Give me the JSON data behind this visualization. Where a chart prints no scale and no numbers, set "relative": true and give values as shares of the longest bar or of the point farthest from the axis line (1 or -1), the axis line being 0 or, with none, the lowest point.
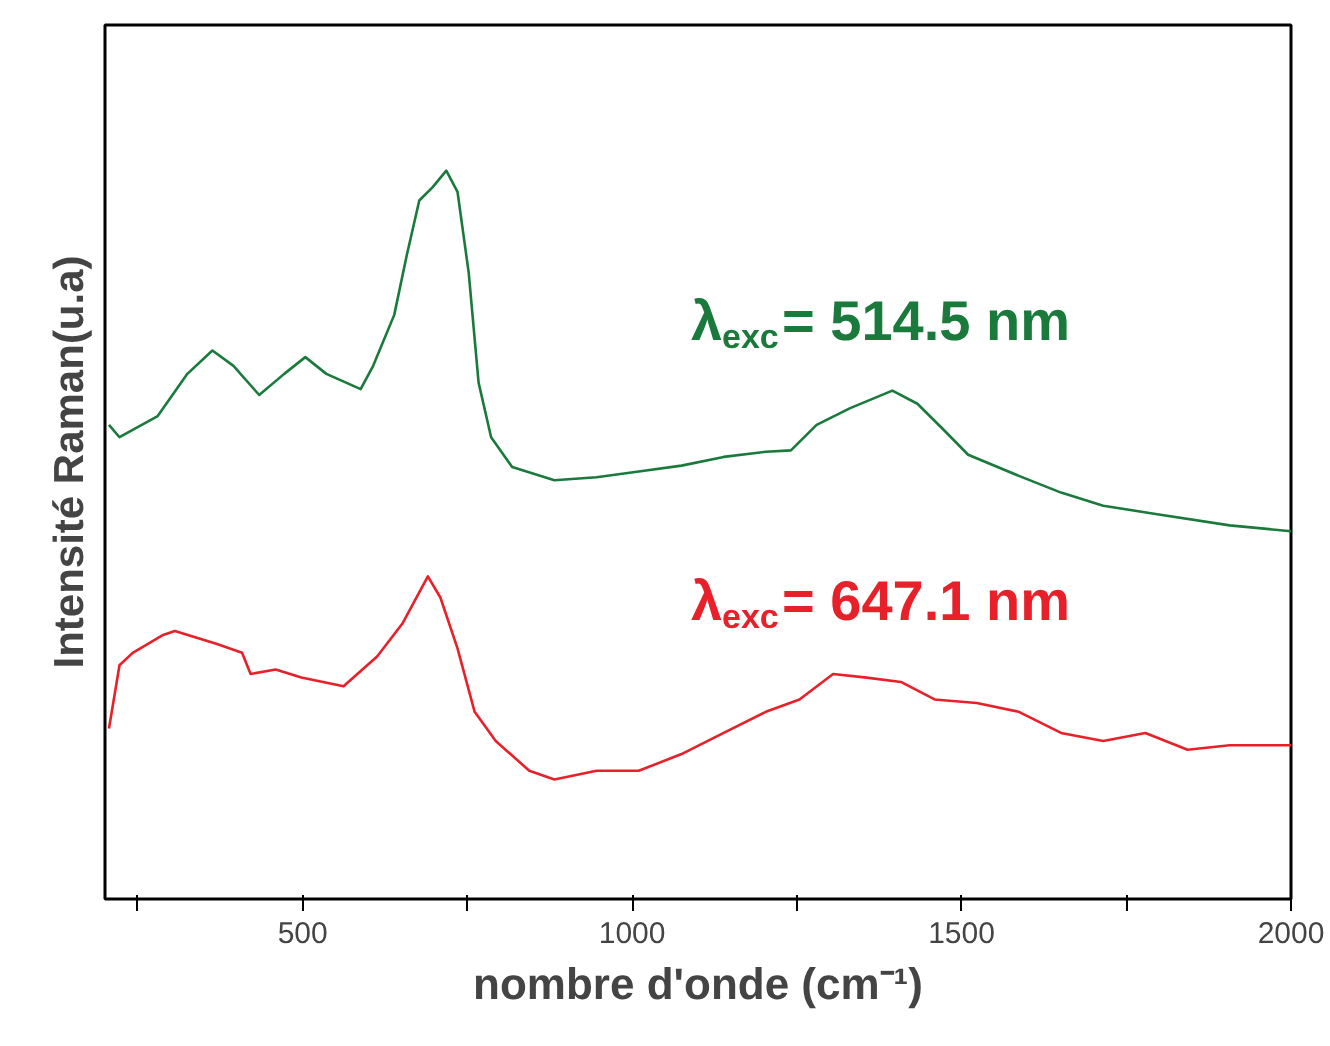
{
  "chart_data": {
    "type": "line",
    "relative": true,
    "xlabel": "nombre d'onde (cm⁻¹)",
    "ylabel": "Intensité Raman(u.a)",
    "xlim": [
      200,
      2000
    ],
    "xticks": [
      {
        "value": 250,
        "label": null
      },
      500,
      {
        "value": 750,
        "label": null
      },
      1000,
      {
        "value": 1250,
        "label": null
      },
      1500,
      {
        "value": 1750,
        "label": null
      },
      2000
    ],
    "grid": false,
    "marker": "none",
    "line_style": "solid",
    "series": [
      {
        "name": "λ$_{exc}$= 514.5 nm",
        "color": "#1a7a3c",
        "x": [
          206,
          222,
          280,
          325,
          363,
          395,
          434,
          472,
          504,
          536,
          588,
          607,
          639,
          658,
          677,
          697,
          718,
          735,
          752,
          767,
          786,
          818,
          882,
          946,
          1010,
          1075,
          1139,
          1203,
          1241,
          1280,
          1331,
          1395,
          1433,
          1472,
          1510,
          1587,
          1651,
          1715,
          1792,
          1907,
          2000
        ],
        "values": [
          0.651,
          0.634,
          0.663,
          0.721,
          0.753,
          0.732,
          0.692,
          0.721,
          0.744,
          0.721,
          0.7,
          0.732,
          0.802,
          0.884,
          0.959,
          0.977,
          1.0,
          0.971,
          0.86,
          0.709,
          0.634,
          0.593,
          0.575,
          0.579,
          0.587,
          0.595,
          0.607,
          0.614,
          0.616,
          0.651,
          0.674,
          0.698,
          0.68,
          0.645,
          0.61,
          0.581,
          0.558,
          0.54,
          0.529,
          0.513,
          0.505
        ]
      },
      {
        "name": "λ$_{exc}$= 647.1 nm",
        "color": "#e8202a",
        "x": [
          206,
          222,
          242,
          287,
          306,
          370,
          408,
          421,
          459,
          498,
          562,
          613,
          652,
          690,
          709,
          735,
          761,
          793,
          844,
          882,
          946,
          1010,
          1075,
          1139,
          1203,
          1254,
          1305,
          1356,
          1408,
          1459,
          1523,
          1587,
          1651,
          1715,
          1779,
          1843,
          1907,
          2000
        ],
        "values": [
          0.234,
          0.321,
          0.338,
          0.362,
          0.368,
          0.35,
          0.338,
          0.309,
          0.315,
          0.304,
          0.292,
          0.333,
          0.379,
          0.443,
          0.414,
          0.344,
          0.257,
          0.217,
          0.176,
          0.164,
          0.176,
          0.176,
          0.199,
          0.228,
          0.257,
          0.274,
          0.309,
          0.304,
          0.298,
          0.274,
          0.269,
          0.257,
          0.228,
          0.217,
          0.228,
          0.205,
          0.211,
          0.211
        ]
      }
    ]
  }
}
